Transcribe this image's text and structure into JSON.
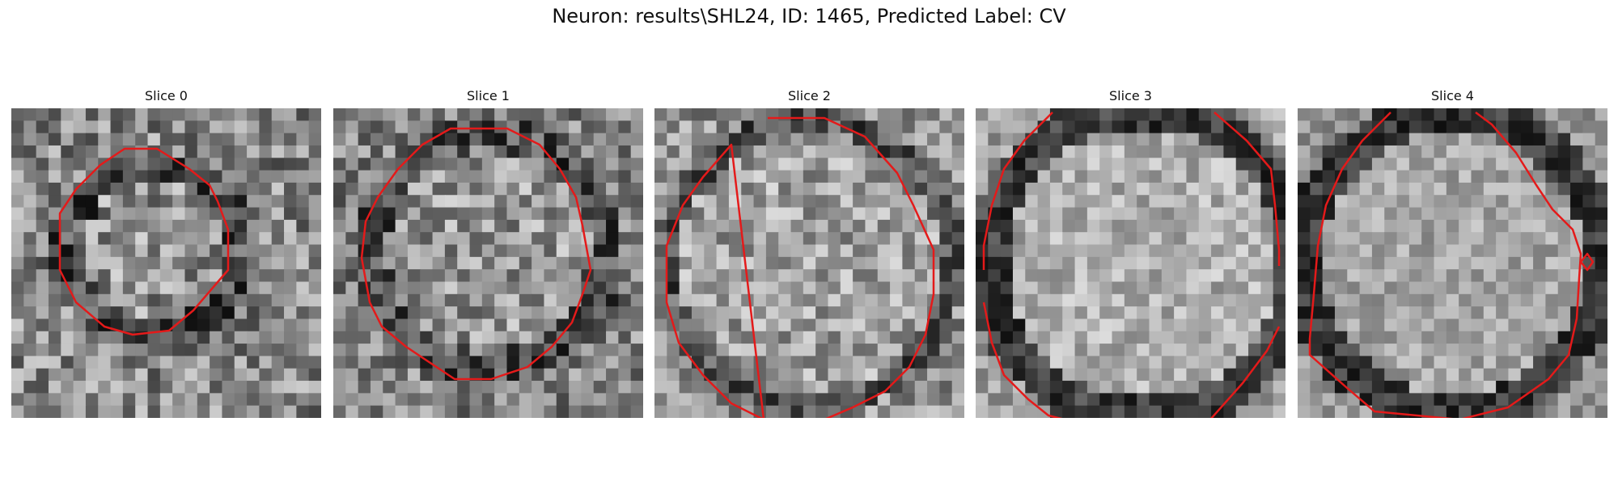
{
  "figure": {
    "title": "Neuron: results\\SHL24, ID: 1465, Predicted Label: CV"
  },
  "panels": [
    {
      "title": "Slice 0"
    },
    {
      "title": "Slice 1"
    },
    {
      "title": "Slice 2"
    },
    {
      "title": "Slice 3"
    },
    {
      "title": "Slice 4"
    }
  ],
  "colors": {
    "contour": "#e41a1a",
    "background": "#ffffff"
  }
}
